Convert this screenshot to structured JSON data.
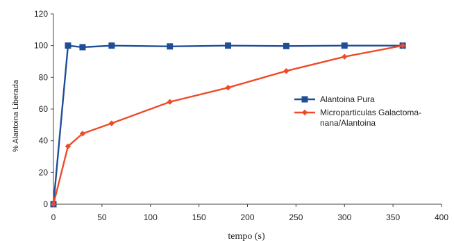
{
  "chart_data": {
    "type": "line",
    "xlabel": "tempo (s)",
    "ylabel": "% Alantoina Liberada",
    "xlim": [
      0,
      400
    ],
    "ylim": [
      0,
      120
    ],
    "xticks": [
      "0",
      "50",
      "100",
      "150",
      "200",
      "250",
      "300",
      "350",
      "400"
    ],
    "yticks": [
      "0",
      "20",
      "40",
      "60",
      "80",
      "100",
      "120"
    ],
    "grid": false,
    "legend_position": "right",
    "series": [
      {
        "name": "Alantoina Pura",
        "color": "#1f4e96",
        "marker": "square",
        "x": [
          0,
          15,
          30,
          60,
          120,
          180,
          240,
          300,
          360
        ],
        "y": [
          0,
          100,
          99,
          100,
          99.5,
          100,
          99.7,
          100,
          100
        ]
      },
      {
        "name": "Microparticulas Galactoma-nana/Alantoina",
        "legend_lines": [
          "Microparticulas Galactoma-",
          "nana/Alantoina"
        ],
        "color": "#f04a28",
        "marker": "diamond",
        "x": [
          0,
          15,
          30,
          60,
          120,
          180,
          240,
          300,
          360
        ],
        "y": [
          0,
          36.5,
          44.5,
          51,
          64.5,
          73.5,
          84,
          93,
          100
        ]
      }
    ]
  }
}
